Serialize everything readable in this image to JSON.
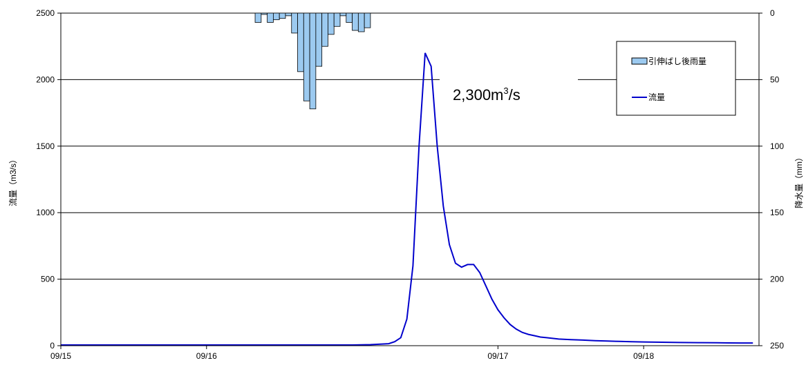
{
  "chart_data": {
    "type": "line",
    "x_tick_labels": [
      "09/15",
      "09/16",
      "09/17",
      "09/18"
    ],
    "ylabel": "流量（m3/s）",
    "y2label": "降水量（mm）",
    "ylim": [
      0,
      2500
    ],
    "y_ticks": [
      0,
      500,
      1000,
      1500,
      2000,
      2500
    ],
    "y2lim": [
      0,
      250
    ],
    "y2_ticks": [
      0,
      50,
      100,
      150,
      200,
      250
    ],
    "y2_inverted": true,
    "grid": true,
    "legend": {
      "placement": "top-right",
      "rain_label": "引伸ばし後雨量",
      "flow_label": "流量"
    },
    "annotation": {
      "prefix": "2,300m",
      "sup": "3",
      "suffix": "/s"
    },
    "colors": {
      "flow_line": "#0000cc",
      "rain_bar": "#9ccaf0",
      "rain_bar_stroke": "#000000",
      "gridline": "#000000"
    },
    "series": [
      {
        "name": "流量",
        "kind": "line",
        "x_hours": [
          0,
          3,
          6,
          9,
          12,
          15,
          18,
          21,
          24,
          27,
          30,
          33,
          36,
          39,
          42,
          45,
          48,
          51,
          54,
          55,
          56,
          57,
          58,
          59,
          60,
          61,
          62,
          63,
          64,
          65,
          66,
          67,
          68,
          69,
          70,
          71,
          72,
          73,
          74,
          75,
          76,
          77,
          78,
          79,
          80,
          81,
          82,
          84,
          86,
          88,
          90,
          92,
          94,
          96,
          99,
          102,
          105,
          108,
          110,
          112,
          114
        ],
        "values": [
          5,
          5,
          5,
          5,
          5,
          5,
          5,
          5,
          5,
          5,
          5,
          5,
          5,
          5,
          5,
          5,
          5,
          8,
          15,
          30,
          60,
          200,
          600,
          1500,
          2200,
          2100,
          1500,
          1050,
          760,
          620,
          590,
          610,
          610,
          550,
          450,
          350,
          270,
          210,
          160,
          125,
          100,
          85,
          75,
          65,
          60,
          55,
          50,
          45,
          42,
          38,
          35,
          32,
          30,
          28,
          26,
          24,
          23,
          22,
          21,
          20,
          20
        ]
      },
      {
        "name": "引伸ばし後雨量",
        "kind": "bar",
        "axis": "right",
        "start_hours": [
          32,
          33,
          34,
          35,
          36,
          37,
          38,
          39,
          40,
          41,
          42,
          43,
          44,
          45,
          46,
          47,
          48,
          49,
          50
        ],
        "values": [
          7,
          1,
          7,
          5,
          4,
          2,
          15,
          44,
          66,
          72,
          40,
          25,
          16,
          10,
          2,
          7,
          13,
          14,
          11
        ]
      }
    ]
  }
}
